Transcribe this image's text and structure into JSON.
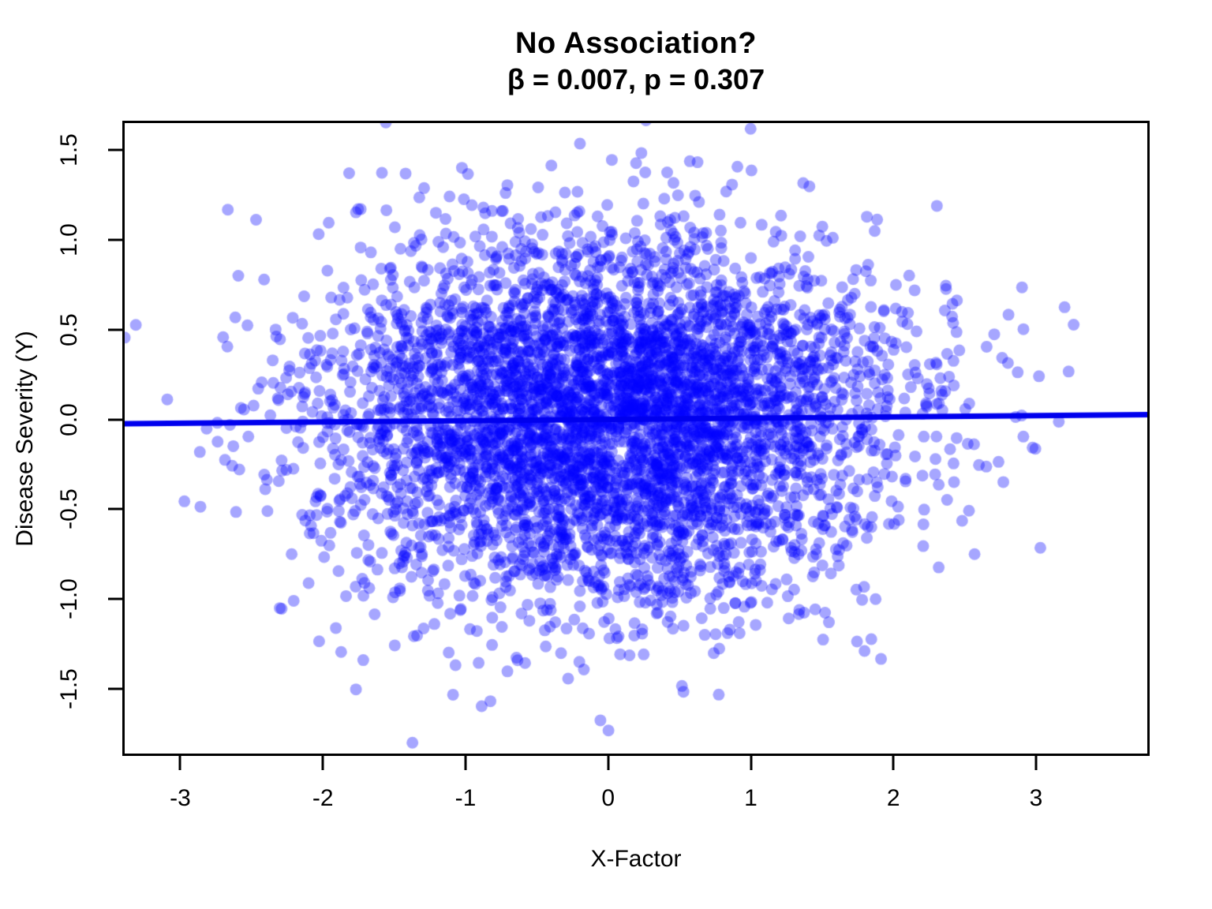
{
  "chart_data": {
    "type": "scatter",
    "title": "No Association?",
    "subtitle": "β = 0.007, p = 0.307",
    "xlabel": "X-Factor",
    "ylabel": "Disease Severity (Y)",
    "xlim": [
      -3.39,
      3.78
    ],
    "ylim": [
      -1.86,
      1.65
    ],
    "x_ticks": [
      -3,
      -2,
      -1,
      0,
      1,
      2,
      3
    ],
    "x_tick_labels": [
      "-3",
      "-2",
      "-1",
      "0",
      "1",
      "2",
      "3"
    ],
    "y_ticks": [
      1.5,
      1.0,
      0.5,
      0.0,
      -0.5,
      -1.0,
      -1.5
    ],
    "y_tick_labels": [
      "1.5",
      "1.0",
      "0.5",
      "0.0",
      "-0.5",
      "-1.0",
      "-1.5"
    ],
    "grid": false,
    "legend": null,
    "n_points": 5000,
    "point_distribution": {
      "x_mean": 0,
      "x_sd": 1.0,
      "y_mean": 0,
      "y_sd": 0.5
    },
    "random_seed": 1337,
    "regression_line": {
      "beta": 0.007,
      "intercept": 0,
      "p_value": 0.307
    },
    "point_style": {
      "color": "#0000FF",
      "alpha": 0.35,
      "radius": 7.5
    },
    "line_style": {
      "color": "#0000EE",
      "width": 7
    },
    "frame_color": "#000000",
    "background": "#FFFFFF"
  }
}
